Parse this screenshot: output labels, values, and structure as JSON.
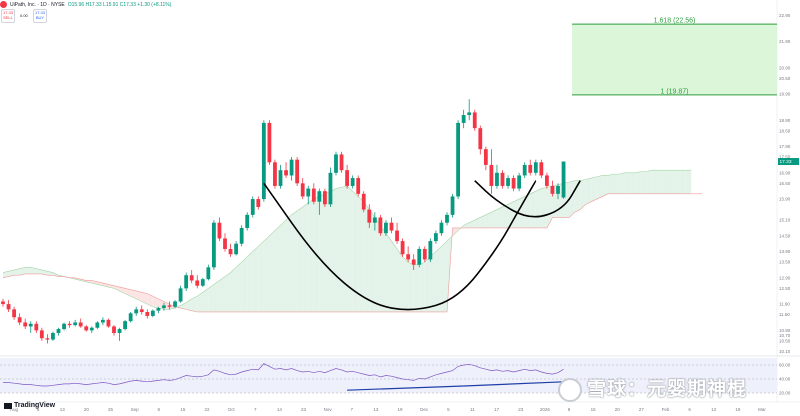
{
  "header": {
    "symbol": "UiPath, Inc. · 1D · NYSE",
    "ohlc": "O15.96 H17.33 L15.91 C17.33 +1.30 (+8.11%)",
    "sell_price": "17.33",
    "sell_label": "SELL",
    "spread": "0.00",
    "buy_price": "17.33",
    "buy_label": "BUY"
  },
  "branding": {
    "tradingview": "TradingView",
    "watermark": "雪球：元婴期神棍"
  },
  "colors": {
    "up": "#089981",
    "down": "#f23645",
    "cloud_bull": "#e3f3e9",
    "cloud_bear": "#fbe5e4",
    "fib": "#2e9e3e",
    "fib_fill": "#d6f5d3",
    "cup_line": "#000000",
    "indicator_line": "#1e3fa8"
  },
  "chart_data": {
    "type": "candlestick",
    "symbol": "UiPath, Inc.",
    "interval": "1D",
    "exchange": "NYSE",
    "price_axis": {
      "ticks": [
        "22.90",
        "21.90",
        "20.90",
        "20.50",
        "19.90",
        "18.90",
        "18.50",
        "17.90",
        "17.50",
        "16.90",
        "16.50",
        "15.90",
        "15.10",
        "14.50",
        "13.90",
        "13.50",
        "12.90",
        "12.50",
        "11.90",
        "11.50",
        "10.90",
        "10.70",
        "10.50",
        "10.10"
      ],
      "ylim": [
        10.0,
        23.1
      ]
    },
    "time_axis": {
      "ticks": [
        "Aug",
        "6",
        "13",
        "20",
        "25",
        "Sep",
        "8",
        "15",
        "22",
        "Oct",
        "7",
        "14",
        "23",
        "Nov",
        "7",
        "13",
        "19",
        "Dec",
        "5",
        "11",
        "17",
        "23",
        "2026",
        "8",
        "15",
        "20",
        "27",
        "Feb",
        "6",
        "12",
        "19",
        "Mar"
      ]
    },
    "candles": [
      [
        12.0,
        12.1,
        11.8,
        11.9
      ],
      [
        11.9,
        12.05,
        11.6,
        11.7
      ],
      [
        11.7,
        11.8,
        11.3,
        11.4
      ],
      [
        11.4,
        11.55,
        11.1,
        11.2
      ],
      [
        11.2,
        11.35,
        10.95,
        11.05
      ],
      [
        11.05,
        11.25,
        10.8,
        11.15
      ],
      [
        11.15,
        11.25,
        10.8,
        10.9
      ],
      [
        10.9,
        11.0,
        10.5,
        10.6
      ],
      [
        10.6,
        10.75,
        10.4,
        10.55
      ],
      [
        10.55,
        10.85,
        10.5,
        10.8
      ],
      [
        10.8,
        11.0,
        10.7,
        10.95
      ],
      [
        10.95,
        11.2,
        10.9,
        11.15
      ],
      [
        11.15,
        11.25,
        11.0,
        11.1
      ],
      [
        11.1,
        11.3,
        11.05,
        11.2
      ],
      [
        11.2,
        11.35,
        11.0,
        11.05
      ],
      [
        11.05,
        11.1,
        10.85,
        10.9
      ],
      [
        10.9,
        11.05,
        10.8,
        11.0
      ],
      [
        11.0,
        11.25,
        10.95,
        11.2
      ],
      [
        11.2,
        11.4,
        11.1,
        11.3
      ],
      [
        11.3,
        11.35,
        11.0,
        11.05
      ],
      [
        11.05,
        11.1,
        10.7,
        10.8
      ],
      [
        10.8,
        11.0,
        10.5,
        10.95
      ],
      [
        10.95,
        11.3,
        10.9,
        11.25
      ],
      [
        11.25,
        11.6,
        11.2,
        11.55
      ],
      [
        11.55,
        11.8,
        11.45,
        11.7
      ],
      [
        11.7,
        11.85,
        11.5,
        11.6
      ],
      [
        11.6,
        11.7,
        11.35,
        11.45
      ],
      [
        11.45,
        11.7,
        11.4,
        11.65
      ],
      [
        11.65,
        11.8,
        11.55,
        11.75
      ],
      [
        11.75,
        11.95,
        11.65,
        11.85
      ],
      [
        11.85,
        12.0,
        11.7,
        11.8
      ],
      [
        11.8,
        12.05,
        11.75,
        12.0
      ],
      [
        12.0,
        12.6,
        11.95,
        12.5
      ],
      [
        12.5,
        13.1,
        12.4,
        13.0
      ],
      [
        13.0,
        13.2,
        12.7,
        12.8
      ],
      [
        12.8,
        13.0,
        12.5,
        12.6
      ],
      [
        12.6,
        12.9,
        12.55,
        12.85
      ],
      [
        12.85,
        13.4,
        12.8,
        13.3
      ],
      [
        13.3,
        15.1,
        13.2,
        15.0
      ],
      [
        15.0,
        15.2,
        14.3,
        14.4
      ],
      [
        14.4,
        14.6,
        13.9,
        14.0
      ],
      [
        14.0,
        14.2,
        13.7,
        13.8
      ],
      [
        13.8,
        14.3,
        13.75,
        14.2
      ],
      [
        14.2,
        14.9,
        14.1,
        14.8
      ],
      [
        14.8,
        15.4,
        14.7,
        15.3
      ],
      [
        15.3,
        16.0,
        15.2,
        15.9
      ],
      [
        15.9,
        16.0,
        15.5,
        15.6
      ],
      [
        15.9,
        18.9,
        15.8,
        18.8
      ],
      [
        18.8,
        18.9,
        17.2,
        17.3
      ],
      [
        17.3,
        17.4,
        16.3,
        16.4
      ],
      [
        16.4,
        17.2,
        16.3,
        17.0
      ],
      [
        17.0,
        17.3,
        16.7,
        16.8
      ],
      [
        16.8,
        17.5,
        16.6,
        17.4
      ],
      [
        17.4,
        17.5,
        16.4,
        16.5
      ],
      [
        16.5,
        16.7,
        15.9,
        16.0
      ],
      [
        16.0,
        16.4,
        15.7,
        16.3
      ],
      [
        16.3,
        16.5,
        15.7,
        15.8
      ],
      [
        15.8,
        16.3,
        15.3,
        16.2
      ],
      [
        16.2,
        16.3,
        15.6,
        15.7
      ],
      [
        15.7,
        17.1,
        15.6,
        16.9
      ],
      [
        16.9,
        17.7,
        16.8,
        17.6
      ],
      [
        17.6,
        17.7,
        16.9,
        17.0
      ],
      [
        17.0,
        17.2,
        16.3,
        16.4
      ],
      [
        16.4,
        16.8,
        16.3,
        16.7
      ],
      [
        16.7,
        16.8,
        16.0,
        16.1
      ],
      [
        16.1,
        16.2,
        15.4,
        15.5
      ],
      [
        15.5,
        15.7,
        14.8,
        15.0
      ],
      [
        15.0,
        15.4,
        14.7,
        15.2
      ],
      [
        15.2,
        15.3,
        14.5,
        14.6
      ],
      [
        14.6,
        15.1,
        14.5,
        15.0
      ],
      [
        15.0,
        15.2,
        14.6,
        14.7
      ],
      [
        14.7,
        15.0,
        14.2,
        14.3
      ],
      [
        14.3,
        14.4,
        13.7,
        13.8
      ],
      [
        13.8,
        14.1,
        13.5,
        13.6
      ],
      [
        13.6,
        13.8,
        13.2,
        13.4
      ],
      [
        13.4,
        14.1,
        13.3,
        14.0
      ],
      [
        14.0,
        14.1,
        13.5,
        13.6
      ],
      [
        13.6,
        14.4,
        13.5,
        14.3
      ],
      [
        14.3,
        14.7,
        14.2,
        14.6
      ],
      [
        14.6,
        15.1,
        14.5,
        15.0
      ],
      [
        15.0,
        15.4,
        14.9,
        15.3
      ],
      [
        15.3,
        16.1,
        15.2,
        16.0
      ],
      [
        16.0,
        18.9,
        15.9,
        18.8
      ],
      [
        18.8,
        19.3,
        18.6,
        19.1
      ],
      [
        19.1,
        19.7,
        18.9,
        19.2
      ],
      [
        19.2,
        19.3,
        18.5,
        18.6
      ],
      [
        18.6,
        18.7,
        17.6,
        17.8
      ],
      [
        17.8,
        17.9,
        17.0,
        17.2
      ],
      [
        17.2,
        17.8,
        16.1,
        16.4
      ],
      [
        16.4,
        17.2,
        16.3,
        16.9
      ],
      [
        16.9,
        17.0,
        16.3,
        16.4
      ],
      [
        16.4,
        16.8,
        16.3,
        16.7
      ],
      [
        16.7,
        16.8,
        16.2,
        16.3
      ],
      [
        16.3,
        16.9,
        16.2,
        16.8
      ],
      [
        16.8,
        17.3,
        16.7,
        17.2
      ],
      [
        17.2,
        17.4,
        16.8,
        16.9
      ],
      [
        16.9,
        17.4,
        16.8,
        17.3
      ],
      [
        17.3,
        17.4,
        16.7,
        16.8
      ],
      [
        16.8,
        16.9,
        16.3,
        16.4
      ],
      [
        16.4,
        16.6,
        16.0,
        16.1
      ],
      [
        16.1,
        16.5,
        15.9,
        16.4
      ],
      [
        15.96,
        17.33,
        15.91,
        17.33
      ]
    ],
    "ichimoku_cloud": {
      "span_a": [
        13.1,
        13.15,
        13.2,
        13.25,
        13.3,
        13.3,
        13.25,
        13.2,
        13.15,
        13.1,
        13.0,
        12.95,
        12.9,
        12.85,
        12.8,
        12.75,
        12.7,
        12.65,
        12.6,
        12.55,
        12.5,
        12.4,
        12.3,
        12.2,
        12.1,
        12.0,
        11.9,
        11.8,
        11.75,
        11.7,
        11.7,
        11.75,
        11.85,
        11.95,
        12.1,
        12.2,
        12.35,
        12.5,
        12.65,
        12.8,
        12.95,
        13.1,
        13.3,
        13.5,
        13.7,
        13.9,
        14.1,
        14.3,
        14.5,
        14.7,
        14.9,
        15.1,
        15.3,
        15.45,
        15.6,
        15.75,
        15.9,
        16.0,
        16.1,
        16.2,
        16.3,
        16.35,
        16.4,
        16.2,
        16.0,
        15.8,
        15.5,
        15.2,
        14.9,
        14.6,
        14.3,
        14.0,
        13.7,
        13.5,
        13.4,
        13.4,
        13.5,
        13.7,
        13.9,
        14.1,
        14.3,
        14.5,
        14.7,
        14.9,
        15.0,
        15.1,
        15.2,
        15.3,
        15.4,
        15.5,
        15.6,
        15.7,
        15.8,
        15.9,
        16.0,
        16.1,
        16.2,
        16.3,
        16.35,
        16.4,
        16.45,
        16.5,
        16.55,
        16.6,
        16.6,
        16.65,
        16.7,
        16.75,
        16.8,
        16.8,
        16.85,
        16.85,
        16.9,
        16.9,
        16.9,
        16.95,
        16.95,
        17.0,
        17.0,
        17.0,
        17.0,
        17.0,
        17.0,
        17.0,
        17.0
      ],
      "span_b": [
        12.9,
        12.95,
        13.0,
        13.0,
        13.05,
        13.05,
        13.05,
        13.05,
        13.0,
        13.0,
        12.95,
        12.95,
        12.9,
        12.9,
        12.85,
        12.8,
        12.8,
        12.75,
        12.7,
        12.65,
        12.6,
        12.55,
        12.5,
        12.45,
        12.4,
        12.35,
        12.3,
        12.2,
        12.1,
        12.0,
        11.9,
        11.8,
        11.75,
        11.7,
        11.65,
        11.6,
        11.6,
        11.6,
        11.6,
        11.6,
        11.6,
        11.6,
        11.6,
        11.6,
        11.6,
        11.6,
        11.6,
        11.6,
        11.6,
        11.6,
        11.6,
        11.6,
        11.6,
        11.6,
        11.6,
        11.6,
        11.6,
        11.6,
        11.6,
        11.6,
        11.6,
        11.6,
        11.6,
        11.6,
        11.6,
        11.6,
        11.6,
        11.6,
        11.6,
        11.6,
        11.6,
        11.6,
        11.6,
        11.6,
        11.6,
        11.6,
        11.6,
        11.6,
        11.6,
        11.6,
        11.6,
        14.8,
        14.8,
        14.8,
        14.8,
        14.8,
        14.8,
        14.8,
        14.8,
        14.8,
        14.8,
        14.8,
        14.8,
        14.8,
        14.8,
        14.8,
        14.8,
        14.8,
        14.8,
        15.2,
        15.2,
        15.2,
        15.2,
        15.4,
        15.5,
        15.7,
        15.8,
        15.9,
        16.0,
        16.1,
        16.1,
        16.1,
        16.1,
        16.1,
        16.1,
        16.1,
        16.1,
        16.1,
        16.1,
        16.1,
        16.1,
        16.1,
        16.1,
        16.1,
        16.1,
        16.1,
        16.1
      ]
    },
    "cup_pattern": [
      {
        "x": 47,
        "y": 16.5
      },
      {
        "x": 57,
        "y": 13.5
      },
      {
        "x": 66,
        "y": 11.9
      },
      {
        "x": 74,
        "y": 11.6
      },
      {
        "x": 82,
        "y": 12.1
      },
      {
        "x": 89,
        "y": 14.0
      },
      {
        "x": 93,
        "y": 15.5
      },
      {
        "x": 96,
        "y": 16.6
      }
    ],
    "handle_pattern": [
      {
        "x": 85,
        "y": 16.6
      },
      {
        "x": 89,
        "y": 15.8
      },
      {
        "x": 95,
        "y": 15.1
      },
      {
        "x": 101,
        "y": 15.5
      },
      {
        "x": 104,
        "y": 16.6
      }
    ],
    "fibonacci": [
      {
        "label": "1.618 (22.56)",
        "level": 22.56
      },
      {
        "label": "1 (19.87)",
        "level": 19.87
      }
    ],
    "indicator": {
      "axis_labels": [
        "40.00",
        "60.00",
        "20.00"
      ],
      "values": [
        35,
        35,
        34,
        33,
        32,
        32,
        31,
        30,
        30,
        31,
        32,
        33,
        33,
        34,
        33,
        32,
        33,
        34,
        35,
        34,
        32,
        33,
        35,
        37,
        38,
        37,
        36,
        37,
        38,
        39,
        38,
        39,
        42,
        45,
        44,
        43,
        44,
        46,
        53,
        51,
        48,
        46,
        47,
        50,
        52,
        54,
        53,
        62,
        58,
        54,
        55,
        53,
        55,
        52,
        50,
        51,
        49,
        51,
        49,
        52,
        55,
        53,
        50,
        51,
        49,
        47,
        45,
        46,
        43,
        45,
        44,
        42,
        40,
        39,
        38,
        41,
        40,
        43,
        46,
        48,
        50,
        52,
        58,
        60,
        61,
        59,
        56,
        54,
        52,
        53,
        51,
        52,
        50,
        52,
        54,
        52,
        53,
        50,
        48,
        47,
        49,
        54
      ],
      "ylim": [
        20,
        70
      ]
    }
  }
}
